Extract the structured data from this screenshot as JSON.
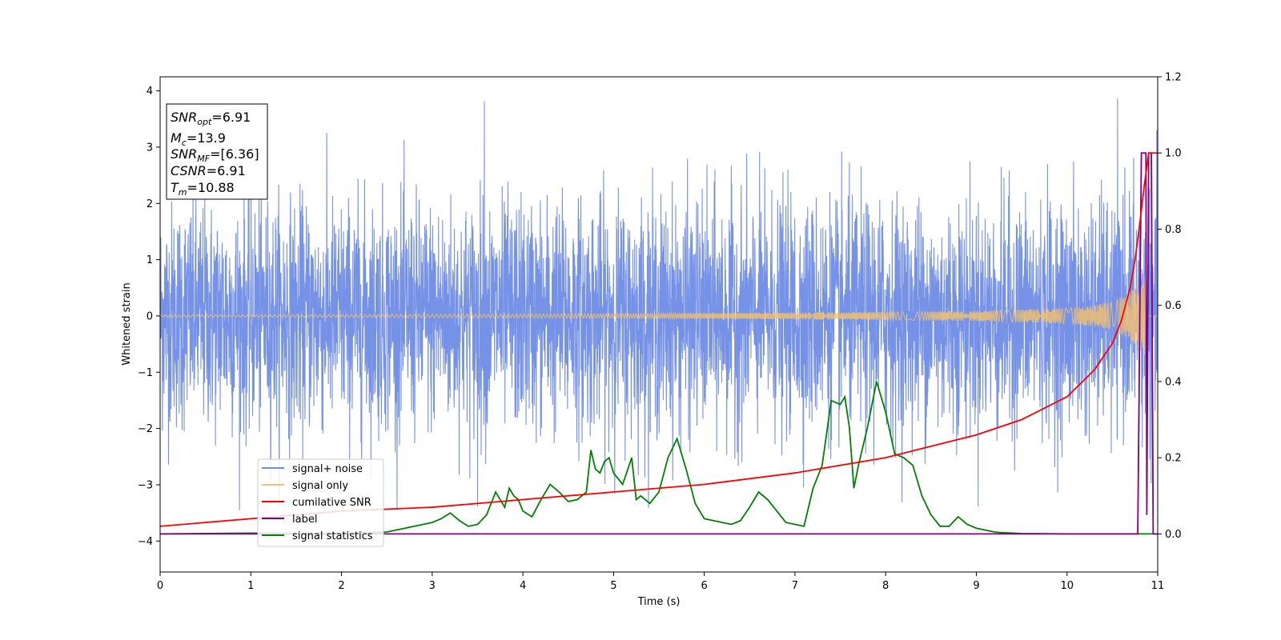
{
  "chart_data": {
    "type": "line",
    "xlabel": "Time (s)",
    "ylabel": "Whitened strain",
    "xlim": [
      0,
      11
    ],
    "ylim_left": [
      -4.55,
      4.25
    ],
    "ylim_right": [
      -0.1,
      1.2
    ],
    "x_ticks": [
      0,
      1,
      2,
      3,
      4,
      5,
      6,
      7,
      8,
      9,
      10,
      11
    ],
    "y_ticks_left": [
      -4,
      -3,
      -2,
      -1,
      0,
      1,
      2,
      3,
      4
    ],
    "y_ticks_right": [
      0.0,
      0.2,
      0.4,
      0.6,
      0.8,
      1.0,
      1.2
    ],
    "y_ticks_right_labels": [
      "0.0",
      "0.2",
      "0.4",
      "0.6",
      "0.8",
      "1.0",
      "1.2"
    ],
    "grid": false,
    "legend_position": "lower-left",
    "annotation_box": {
      "position": "top-left",
      "lines": [
        {
          "sym": "SNR",
          "sub": "opt",
          "value": "=6.91"
        },
        {
          "sym": "M",
          "sub": "c",
          "value": "=13.9"
        },
        {
          "sym": "SNR",
          "sub": "MF",
          "value": "=[6.36]"
        },
        {
          "sym": "CSNR",
          "sub": "",
          "value": "=6.91"
        },
        {
          "sym": "T",
          "sub": "m",
          "value": "=10.88"
        }
      ]
    },
    "series": [
      {
        "name": "signal+ noise",
        "axis": "left",
        "color": "#6f8ce6",
        "description": "whitened strain, Gaussian noise of unit variance plus chirp",
        "noise_std": 1.0,
        "min": -3.45,
        "max": 3.85
      },
      {
        "name": "signal only",
        "axis": "left",
        "color": "#f5c26b",
        "description": "chirp waveform, amplitude growing toward merger",
        "x": [
          0,
          1,
          2,
          3,
          4,
          5,
          6,
          7,
          8,
          9,
          10,
          10.3,
          10.5,
          10.7,
          10.8,
          10.88
        ],
        "amplitude": [
          0.02,
          0.02,
          0.025,
          0.03,
          0.035,
          0.04,
          0.05,
          0.06,
          0.07,
          0.09,
          0.14,
          0.19,
          0.26,
          0.42,
          0.6,
          0.75
        ]
      },
      {
        "name": "cumilative SNR",
        "axis": "right",
        "color": "#ff0000",
        "x": [
          0,
          1,
          2,
          3,
          4,
          5,
          6,
          7,
          8,
          9,
          9.5,
          10,
          10.3,
          10.5,
          10.6,
          10.7,
          10.75,
          10.8,
          10.85,
          10.9,
          11
        ],
        "values": [
          0.02,
          0.04,
          0.06,
          0.07,
          0.09,
          0.11,
          0.13,
          0.16,
          0.2,
          0.26,
          0.3,
          0.36,
          0.43,
          0.5,
          0.56,
          0.65,
          0.72,
          0.81,
          0.91,
          1.0,
          1.0
        ]
      },
      {
        "name": "label",
        "axis": "right",
        "color": "#800080",
        "x": [
          0,
          10.78,
          10.82,
          10.87,
          10.88,
          10.9,
          10.93,
          10.95,
          10.97,
          11
        ],
        "values": [
          0,
          0,
          1.0,
          1.0,
          0.05,
          1.0,
          1.0,
          0,
          0,
          0
        ]
      },
      {
        "name": "signal statistics",
        "axis": "right",
        "color": "#008000",
        "x": [
          0,
          0.5,
          1,
          1.5,
          2,
          2.3,
          2.5,
          2.6,
          2.7,
          2.8,
          2.9,
          3.0,
          3.1,
          3.2,
          3.3,
          3.4,
          3.5,
          3.6,
          3.7,
          3.8,
          3.85,
          3.9,
          3.95,
          4.0,
          4.1,
          4.2,
          4.3,
          4.4,
          4.5,
          4.6,
          4.7,
          4.75,
          4.8,
          4.85,
          4.9,
          4.95,
          5.0,
          5.1,
          5.2,
          5.25,
          5.3,
          5.4,
          5.5,
          5.6,
          5.7,
          5.8,
          5.9,
          6.0,
          6.1,
          6.2,
          6.3,
          6.4,
          6.5,
          6.6,
          6.7,
          6.8,
          6.9,
          7.0,
          7.1,
          7.2,
          7.3,
          7.4,
          7.5,
          7.55,
          7.6,
          7.65,
          7.7,
          7.8,
          7.9,
          8.0,
          8.1,
          8.2,
          8.3,
          8.4,
          8.5,
          8.6,
          8.7,
          8.8,
          8.9,
          9.0,
          9.1,
          9.2,
          9.3,
          9.5,
          10,
          10.5,
          11
        ],
        "values": [
          0.0,
          0.001,
          0.002,
          0.001,
          0.002,
          0.003,
          0.005,
          0.01,
          0.015,
          0.02,
          0.025,
          0.03,
          0.04,
          0.055,
          0.035,
          0.02,
          0.025,
          0.05,
          0.11,
          0.07,
          0.12,
          0.1,
          0.09,
          0.06,
          0.045,
          0.09,
          0.13,
          0.11,
          0.085,
          0.09,
          0.11,
          0.22,
          0.17,
          0.16,
          0.19,
          0.2,
          0.16,
          0.13,
          0.2,
          0.09,
          0.1,
          0.08,
          0.11,
          0.2,
          0.25,
          0.17,
          0.08,
          0.04,
          0.035,
          0.03,
          0.025,
          0.035,
          0.07,
          0.11,
          0.09,
          0.06,
          0.03,
          0.025,
          0.02,
          0.12,
          0.18,
          0.35,
          0.34,
          0.36,
          0.28,
          0.12,
          0.18,
          0.28,
          0.4,
          0.32,
          0.21,
          0.2,
          0.18,
          0.1,
          0.05,
          0.02,
          0.02,
          0.045,
          0.025,
          0.015,
          0.01,
          0.005,
          0.003,
          0.001,
          0.0,
          0.0,
          0.0
        ]
      }
    ]
  }
}
